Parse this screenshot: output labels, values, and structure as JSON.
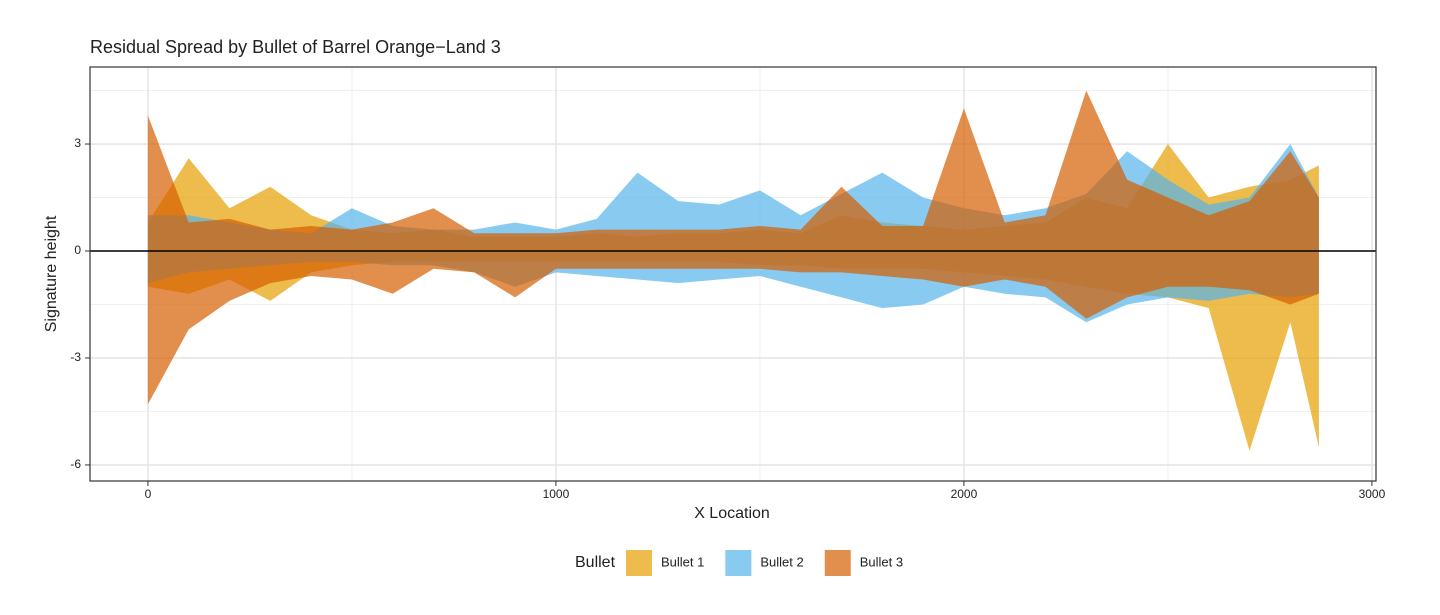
{
  "chart_data": {
    "type": "ribbon",
    "title": "Residual Spread by Bullet of Barrel Orange−Land 3",
    "x_label": "X Location",
    "y_label": "Signature height",
    "legend_title": "Bullet",
    "x": [
      0,
      100,
      200,
      300,
      400,
      500,
      600,
      700,
      800,
      900,
      1000,
      1100,
      1200,
      1300,
      1400,
      1500,
      1600,
      1700,
      1800,
      1900,
      2000,
      2100,
      2200,
      2300,
      2400,
      2500,
      2600,
      2700,
      2800,
      2870
    ],
    "series": [
      {
        "name": "Bullet 1",
        "color": "#E69F00",
        "upper": [
          0.8,
          2.6,
          1.2,
          1.8,
          1.0,
          0.6,
          0.5,
          0.6,
          0.4,
          0.4,
          0.4,
          0.5,
          0.4,
          0.5,
          0.5,
          0.6,
          0.5,
          1.0,
          0.8,
          0.7,
          0.6,
          0.7,
          0.8,
          1.5,
          1.2,
          3.0,
          1.5,
          1.8,
          2.0,
          2.4
        ],
        "lower": [
          -1.0,
          -1.2,
          -0.8,
          -1.4,
          -0.6,
          -0.4,
          -0.3,
          -0.3,
          -0.3,
          -0.3,
          -0.3,
          -0.3,
          -0.3,
          -0.3,
          -0.3,
          -0.4,
          -0.4,
          -0.5,
          -0.5,
          -0.5,
          -0.6,
          -0.7,
          -0.8,
          -1.0,
          -1.2,
          -1.3,
          -1.6,
          -5.6,
          -2.0,
          -5.5
        ]
      },
      {
        "name": "Bullet 2",
        "color": "#56B4E9",
        "upper": [
          1.0,
          1.0,
          0.8,
          0.6,
          0.5,
          1.2,
          0.7,
          0.6,
          0.6,
          0.8,
          0.6,
          0.9,
          2.2,
          1.4,
          1.3,
          1.7,
          1.0,
          1.6,
          2.2,
          1.5,
          1.2,
          1.0,
          1.2,
          1.6,
          2.8,
          2.0,
          1.3,
          1.5,
          3.0,
          1.5
        ],
        "lower": [
          -0.9,
          -0.6,
          -0.5,
          -0.4,
          -0.3,
          -0.3,
          -0.4,
          -0.4,
          -0.6,
          -1.0,
          -0.6,
          -0.7,
          -0.8,
          -0.9,
          -0.8,
          -0.7,
          -1.0,
          -1.3,
          -1.6,
          -1.5,
          -1.0,
          -1.2,
          -1.3,
          -2.0,
          -1.5,
          -1.3,
          -1.4,
          -1.2,
          -1.3,
          -1.2
        ]
      },
      {
        "name": "Bullet 3",
        "color": "#D55E00",
        "upper": [
          3.8,
          0.8,
          0.9,
          0.6,
          0.7,
          0.6,
          0.8,
          1.2,
          0.5,
          0.5,
          0.5,
          0.6,
          0.6,
          0.6,
          0.6,
          0.7,
          0.6,
          1.8,
          0.7,
          0.7,
          4.0,
          0.8,
          1.0,
          4.5,
          2.0,
          1.5,
          1.0,
          1.4,
          2.8,
          1.5
        ],
        "lower": [
          -4.3,
          -2.2,
          -1.4,
          -0.9,
          -0.7,
          -0.8,
          -1.2,
          -0.5,
          -0.6,
          -1.3,
          -0.5,
          -0.5,
          -0.5,
          -0.5,
          -0.5,
          -0.5,
          -0.6,
          -0.6,
          -0.7,
          -0.8,
          -1.0,
          -0.8,
          -1.0,
          -1.9,
          -1.3,
          -1.0,
          -1.0,
          -1.1,
          -1.5,
          -1.2
        ]
      }
    ],
    "xlim": [
      -142,
      3010
    ],
    "ylim": [
      -6.45,
      5.16
    ],
    "xticks": [
      0,
      1000,
      2000,
      3000
    ],
    "yticks": [
      -6,
      -3,
      0,
      3
    ],
    "x_minor_grid": [
      500,
      1500,
      2500
    ],
    "y_minor_grid": [
      -4.5,
      -1.5,
      1.5,
      4.5
    ],
    "hline": 0,
    "opacity": 0.7,
    "grid": true,
    "legend_position": "bottom"
  }
}
